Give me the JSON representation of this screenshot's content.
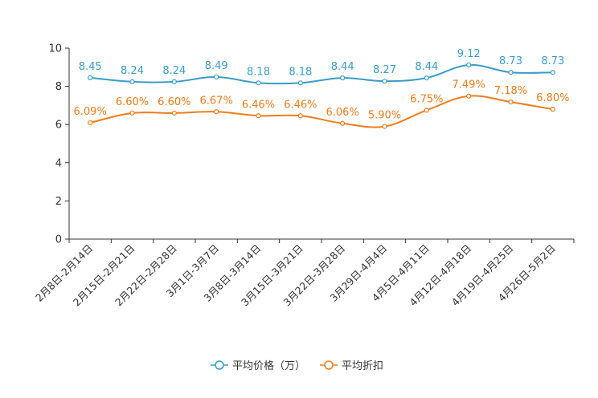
{
  "chart_data": {
    "type": "line",
    "title": "",
    "xlabel": "",
    "ylabel": "",
    "ylim": [
      0,
      10
    ],
    "yticks": [
      0,
      2,
      4,
      6,
      8,
      10
    ],
    "grid": false,
    "legend_position": "bottom-center",
    "categories": [
      "2月8日-2月14日",
      "2月15日-2月21日",
      "2月22日-2月28日",
      "3月1日-3月7日",
      "3月8日-3月14日",
      "3月15日-3月21日",
      "3月22日-3月28日",
      "3月29日-4月4日",
      "4月5日-4月11日",
      "4月12日-4月18日",
      "4月19日-4月25日",
      "4月26日-5月2日"
    ],
    "series": [
      {
        "name": "平均价格（万）",
        "color": "#3a9bc9",
        "values": [
          8.45,
          8.24,
          8.24,
          8.49,
          8.18,
          8.18,
          8.44,
          8.27,
          8.44,
          9.12,
          8.73,
          8.73
        ],
        "labels": [
          "8.45",
          "8.24",
          "8.24",
          "8.49",
          "8.18",
          "8.18",
          "8.44",
          "8.27",
          "8.44",
          "9.12",
          "8.73",
          "8.73"
        ]
      },
      {
        "name": "平均折扣",
        "color": "#f07c1c",
        "values": [
          6.09,
          6.6,
          6.6,
          6.67,
          6.46,
          6.46,
          6.06,
          5.9,
          6.75,
          7.49,
          7.18,
          6.8
        ],
        "labels": [
          "6.09%",
          "6.60%",
          "6.60%",
          "6.67%",
          "6.46%",
          "6.46%",
          "6.06%",
          "5.90%",
          "6.75%",
          "7.49%",
          "7.18%",
          "6.80%"
        ]
      }
    ]
  }
}
